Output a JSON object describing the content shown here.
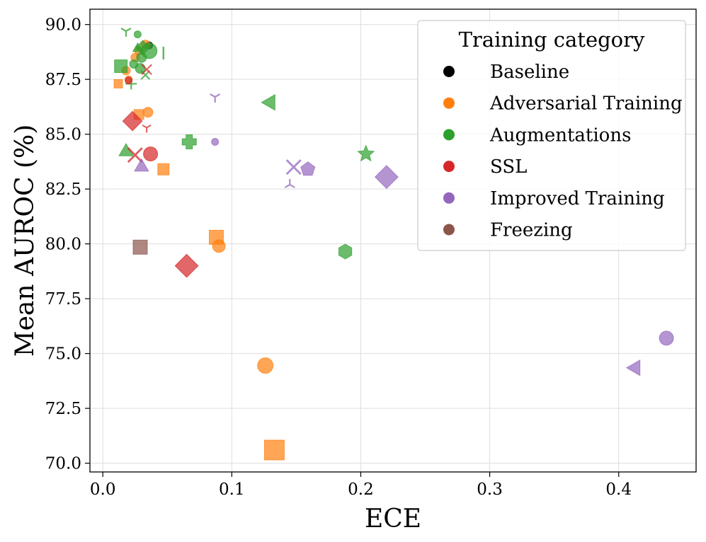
{
  "chart_data": {
    "type": "scatter",
    "xlabel": "ECE",
    "ylabel": "Mean AUROC (%)",
    "xlim": [
      -0.01,
      0.46
    ],
    "ylim": [
      69.6,
      90.7
    ],
    "xticks": [
      0.0,
      0.1,
      0.2,
      0.3,
      0.4
    ],
    "xtick_labels": [
      "0.0",
      "0.1",
      "0.2",
      "0.3",
      "0.4"
    ],
    "yticks": [
      70.0,
      72.5,
      75.0,
      77.5,
      80.0,
      82.5,
      85.0,
      87.5,
      90.0
    ],
    "ytick_labels": [
      "70.0",
      "72.5",
      "75.0",
      "77.5",
      "80.0",
      "82.5",
      "85.0",
      "87.5",
      "90.0"
    ],
    "grid": true,
    "legend": {
      "title": "Training category",
      "placement": "top-right",
      "entries": [
        {
          "label": "Baseline",
          "color": "#000000"
        },
        {
          "label": "Adversarial Training",
          "color": "#ff7f0e"
        },
        {
          "label": "Augmentations",
          "color": "#2ca02c"
        },
        {
          "label": "SSL",
          "color": "#d62728"
        },
        {
          "label": "Improved Training",
          "color": "#9467bd"
        },
        {
          "label": "Freezing",
          "color": "#8c564b"
        }
      ]
    },
    "series": [
      {
        "name": "Baseline",
        "color": "#000000",
        "points": [
          {
            "x": 0.036,
            "y": 89.05,
            "marker": "circle",
            "size": 5
          }
        ]
      },
      {
        "name": "Adversarial Training",
        "color": "#ff7f0e",
        "points": [
          {
            "x": 0.012,
            "y": 87.3,
            "marker": "square",
            "size": 6
          },
          {
            "x": 0.018,
            "y": 87.9,
            "marker": "circle",
            "size": 6
          },
          {
            "x": 0.02,
            "y": 87.5,
            "marker": "circle",
            "size": 5
          },
          {
            "x": 0.025,
            "y": 88.5,
            "marker": "circle",
            "size": 6
          },
          {
            "x": 0.028,
            "y": 88.8,
            "marker": "circle",
            "size": 6
          },
          {
            "x": 0.033,
            "y": 89.1,
            "marker": "circle",
            "size": 6
          },
          {
            "x": 0.035,
            "y": 86.0,
            "marker": "circle",
            "size": 7
          },
          {
            "x": 0.028,
            "y": 85.9,
            "marker": "square",
            "size": 7
          },
          {
            "x": 0.047,
            "y": 83.4,
            "marker": "square",
            "size": 8
          },
          {
            "x": 0.088,
            "y": 80.3,
            "marker": "square",
            "size": 10
          },
          {
            "x": 0.09,
            "y": 79.9,
            "marker": "circle",
            "size": 9
          },
          {
            "x": 0.126,
            "y": 74.45,
            "marker": "circle",
            "size": 11
          },
          {
            "x": 0.133,
            "y": 70.6,
            "marker": "square",
            "size": 14
          }
        ]
      },
      {
        "name": "Augmentations",
        "color": "#2ca02c",
        "points": [
          {
            "x": 0.014,
            "y": 88.1,
            "marker": "square",
            "size": 9
          },
          {
            "x": 0.018,
            "y": 89.7,
            "marker": "tri_down",
            "size": 8
          },
          {
            "x": 0.022,
            "y": 87.3,
            "marker": "plus",
            "size": 8
          },
          {
            "x": 0.024,
            "y": 88.2,
            "marker": "circle",
            "size": 6
          },
          {
            "x": 0.027,
            "y": 89.55,
            "marker": "circle",
            "size": 5
          },
          {
            "x": 0.027,
            "y": 88.9,
            "marker": "triangle_up",
            "size": 7
          },
          {
            "x": 0.029,
            "y": 88.0,
            "marker": "circle",
            "size": 7
          },
          {
            "x": 0.03,
            "y": 88.5,
            "marker": "circle",
            "size": 7
          },
          {
            "x": 0.031,
            "y": 88.95,
            "marker": "diamond",
            "size": 8
          },
          {
            "x": 0.033,
            "y": 87.7,
            "marker": "x",
            "size": 6
          },
          {
            "x": 0.036,
            "y": 88.8,
            "marker": "circle",
            "size": 11
          },
          {
            "x": 0.047,
            "y": 88.7,
            "marker": "vline",
            "size": 9
          },
          {
            "x": 0.018,
            "y": 84.2,
            "marker": "triangle_up",
            "size": 10
          },
          {
            "x": 0.067,
            "y": 84.65,
            "marker": "pplus",
            "size": 10
          },
          {
            "x": 0.13,
            "y": 86.45,
            "marker": "triangle_left",
            "size": 11
          },
          {
            "x": 0.188,
            "y": 79.65,
            "marker": "hexagon",
            "size": 10
          },
          {
            "x": 0.204,
            "y": 84.1,
            "marker": "star",
            "size": 10
          }
        ]
      },
      {
        "name": "SSL",
        "color": "#d62728",
        "points": [
          {
            "x": 0.02,
            "y": 87.45,
            "marker": "circle",
            "size": 5
          },
          {
            "x": 0.034,
            "y": 87.95,
            "marker": "x",
            "size": 7
          },
          {
            "x": 0.034,
            "y": 85.3,
            "marker": "tri_down",
            "size": 7
          },
          {
            "x": 0.023,
            "y": 85.6,
            "marker": "diamond",
            "size": 11
          },
          {
            "x": 0.025,
            "y": 84.05,
            "marker": "x",
            "size": 10
          },
          {
            "x": 0.037,
            "y": 84.1,
            "marker": "circle",
            "size": 10
          },
          {
            "x": 0.065,
            "y": 79.0,
            "marker": "diamond",
            "size": 13
          }
        ]
      },
      {
        "name": "Improved Training",
        "color": "#9467bd",
        "points": [
          {
            "x": 0.03,
            "y": 83.5,
            "marker": "triangle_up",
            "size": 10
          },
          {
            "x": 0.087,
            "y": 86.7,
            "marker": "tri_down",
            "size": 8
          },
          {
            "x": 0.087,
            "y": 84.65,
            "marker": "circle",
            "size": 5
          },
          {
            "x": 0.145,
            "y": 82.7,
            "marker": "tri_up",
            "size": 8
          },
          {
            "x": 0.148,
            "y": 83.5,
            "marker": "x",
            "size": 10
          },
          {
            "x": 0.159,
            "y": 83.4,
            "marker": "pentagon",
            "size": 10
          },
          {
            "x": 0.22,
            "y": 83.05,
            "marker": "diamond",
            "size": 13
          },
          {
            "x": 0.413,
            "y": 74.35,
            "marker": "triangle_left",
            "size": 11
          },
          {
            "x": 0.437,
            "y": 75.7,
            "marker": "circle",
            "size": 10
          }
        ]
      },
      {
        "name": "Freezing",
        "color": "#8c564b",
        "points": [
          {
            "x": 0.029,
            "y": 79.85,
            "marker": "square",
            "size": 10
          }
        ]
      }
    ]
  }
}
